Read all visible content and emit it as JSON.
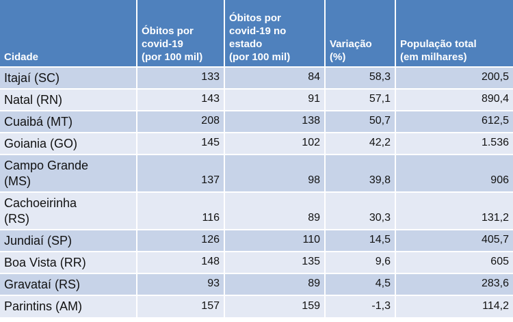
{
  "table": {
    "headers": [
      "Cidade",
      "Óbitos por covid-19 (por 100 mil)",
      "Óbitos por covid-19 no estado (por 100 mil)",
      "Variação (%)",
      "População total (em milhares)"
    ],
    "header_lines": [
      [
        "Cidade"
      ],
      [
        "Óbitos por",
        "covid-19",
        "(por 100 mil)"
      ],
      [
        "Óbitos por",
        "covid-19 no",
        "estado",
        "(por 100 mil)"
      ],
      [
        "Variação",
        "(%)"
      ],
      [
        "População total",
        "(em milhares)"
      ]
    ],
    "rows": [
      {
        "city": "Itajaí (SC)",
        "city_lines": [
          "Itajaí (SC)"
        ],
        "obitos": "133",
        "obitos_estado": "84",
        "variacao": "58,3",
        "populacao": "200,5"
      },
      {
        "city": "Natal (RN)",
        "city_lines": [
          "Natal (RN)"
        ],
        "obitos": "143",
        "obitos_estado": "91",
        "variacao": "57,1",
        "populacao": "890,4"
      },
      {
        "city": "Cuaibá (MT)",
        "city_lines": [
          "Cuaibá (MT)"
        ],
        "obitos": "208",
        "obitos_estado": "138",
        "variacao": "50,7",
        "populacao": "612,5"
      },
      {
        "city": "Goiania (GO)",
        "city_lines": [
          "Goiania (GO)"
        ],
        "obitos": "145",
        "obitos_estado": "102",
        "variacao": "42,2",
        "populacao": "1.536"
      },
      {
        "city": "Campo Grande (MS)",
        "city_lines": [
          "Campo Grande",
          "(MS)"
        ],
        "obitos": "137",
        "obitos_estado": "98",
        "variacao": "39,8",
        "populacao": "906"
      },
      {
        "city": "Cachoeirinha (RS)",
        "city_lines": [
          "Cachoeirinha",
          "(RS)"
        ],
        "obitos": "116",
        "obitos_estado": "89",
        "variacao": "30,3",
        "populacao": "131,2"
      },
      {
        "city": "Jundiaí (SP)",
        "city_lines": [
          "Jundiaí (SP)"
        ],
        "obitos": "126",
        "obitos_estado": "110",
        "variacao": "14,5",
        "populacao": "405,7"
      },
      {
        "city": "Boa Vista (RR)",
        "city_lines": [
          "Boa Vista (RR)"
        ],
        "obitos": "148",
        "obitos_estado": "135",
        "variacao": "9,6",
        "populacao": "605"
      },
      {
        "city": "Gravataí (RS)",
        "city_lines": [
          "Gravataí (RS)"
        ],
        "obitos": "93",
        "obitos_estado": "89",
        "variacao": "4,5",
        "populacao": "283,6"
      },
      {
        "city": "Parintins (AM)",
        "city_lines": [
          "Parintins (AM)"
        ],
        "obitos": "157",
        "obitos_estado": "159",
        "variacao": "-1,3",
        "populacao": "114,2"
      }
    ]
  },
  "colors": {
    "header_bg": "#4f81bd",
    "row_odd": "#c7d3e8",
    "row_even": "#e4e9f4"
  }
}
